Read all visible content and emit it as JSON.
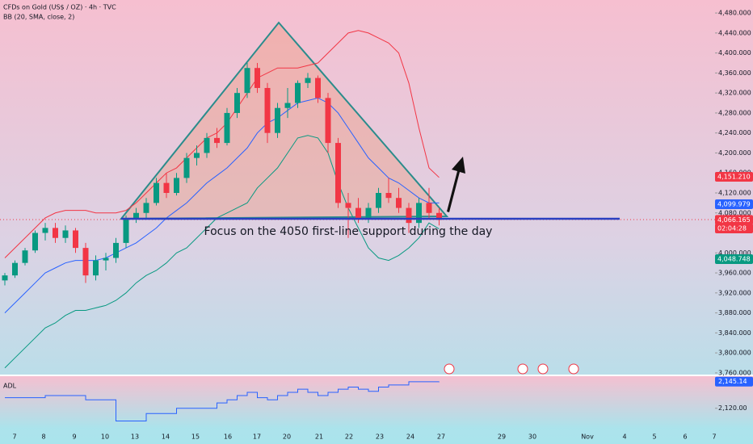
{
  "chart_data": {
    "type": "candlestick",
    "title": "CFDs on Gold (US$ / OZ) · 4h · TVC",
    "subtitle": "BB (20, SMA, close, 2)",
    "annotation": "Focus on the 4050 first-line support during the day",
    "xticks": [
      "7",
      "8",
      "9",
      "10",
      "13",
      "14",
      "15",
      "16",
      "17",
      "20",
      "21",
      "22",
      "23",
      "24",
      "27",
      "29",
      "30",
      "Nov",
      "4",
      "5",
      "6",
      "7"
    ],
    "ylim": [
      3755,
      4506
    ],
    "yticks": [
      {
        "value": 4480,
        "label": "4,480.000"
      },
      {
        "value": 4440,
        "label": "4,440.000"
      },
      {
        "value": 4400,
        "label": "4,400.000"
      },
      {
        "value": 4360,
        "label": "4,360.000"
      },
      {
        "value": 4320,
        "label": "4,320.000"
      },
      {
        "value": 4280,
        "label": "4,280.000"
      },
      {
        "value": 4240,
        "label": "4,240.000"
      },
      {
        "value": 4200,
        "label": "4,200.000"
      },
      {
        "value": 4160,
        "label": "4,160.000"
      },
      {
        "value": 4120,
        "label": "4,120.000"
      },
      {
        "value": 4080,
        "label": "4,080.000"
      },
      {
        "value": 4000,
        "label": "4,000.000"
      },
      {
        "value": 3960,
        "label": "3,960.000"
      },
      {
        "value": 3920,
        "label": "3,920.000"
      },
      {
        "value": 3880,
        "label": "3,880.000"
      },
      {
        "value": 3840,
        "label": "3,840.000"
      },
      {
        "value": 3800,
        "label": "3,800.000"
      },
      {
        "value": 3760,
        "label": "3,760.000"
      }
    ],
    "up_color": "#089981",
    "down_color": "#f23645",
    "open": [
      3945,
      3955,
      3980,
      4005,
      4040,
      4050,
      4030,
      4045,
      4010,
      3955,
      3985,
      3990,
      4020,
      4070,
      4080,
      4100,
      4140,
      4120,
      4150,
      4190,
      4200,
      4230,
      4220,
      4280,
      4320,
      4370,
      4330,
      4240,
      4290,
      4300,
      4340,
      4350,
      4310,
      4220,
      4100,
      4090,
      4070,
      4090,
      4120,
      4110,
      4090,
      4060,
      4100,
      4080
    ],
    "high": [
      3960,
      3985,
      4010,
      4045,
      4060,
      4060,
      4055,
      4050,
      4020,
      3995,
      4000,
      4030,
      4075,
      4090,
      4110,
      4150,
      4160,
      4160,
      4200,
      4215,
      4240,
      4250,
      4290,
      4330,
      4380,
      4380,
      4340,
      4300,
      4330,
      4345,
      4360,
      4355,
      4320,
      4230,
      4120,
      4110,
      4100,
      4130,
      4150,
      4130,
      4100,
      4110,
      4130,
      4090
    ],
    "low": [
      3935,
      3950,
      3975,
      4000,
      4025,
      4020,
      4020,
      4000,
      3940,
      3945,
      3965,
      3980,
      4010,
      4060,
      4070,
      4095,
      4110,
      4115,
      4140,
      4175,
      4190,
      4210,
      4215,
      4270,
      4310,
      4320,
      4220,
      4230,
      4270,
      4290,
      4330,
      4300,
      4200,
      4090,
      4030,
      4060,
      4060,
      4080,
      4100,
      4080,
      4040,
      4050,
      4070,
      4055
    ],
    "close": [
      3955,
      3980,
      4005,
      4040,
      4050,
      4030,
      4045,
      4010,
      3955,
      3985,
      3990,
      4020,
      4070,
      4080,
      4100,
      4140,
      4120,
      4150,
      4190,
      4200,
      4230,
      4220,
      4280,
      4320,
      4370,
      4330,
      4240,
      4290,
      4300,
      4340,
      4350,
      4310,
      4220,
      4100,
      4090,
      4070,
      4090,
      4120,
      4110,
      4090,
      4060,
      4100,
      4080,
      4066
    ],
    "series": [
      {
        "name": "upper",
        "color": "#f23645",
        "values": [
          3990,
          4010,
          4030,
          4050,
          4070,
          4080,
          4085,
          4085,
          4085,
          4080,
          4080,
          4080,
          4085,
          4100,
          4120,
          4140,
          4160,
          4170,
          4190,
          4210,
          4230,
          4240,
          4260,
          4290,
          4320,
          4350,
          4360,
          4370,
          4370,
          4370,
          4375,
          4380,
          4400,
          4420,
          4440,
          4445,
          4440,
          4430,
          4420,
          4400,
          4340,
          4250,
          4170,
          4151
        ]
      },
      {
        "name": "basis",
        "color": "#2962ff",
        "values": [
          3880,
          3900,
          3920,
          3940,
          3960,
          3970,
          3980,
          3985,
          3985,
          3985,
          3990,
          4000,
          4010,
          4020,
          4035,
          4050,
          4070,
          4085,
          4100,
          4120,
          4140,
          4155,
          4170,
          4190,
          4210,
          4240,
          4260,
          4270,
          4285,
          4300,
          4305,
          4310,
          4300,
          4280,
          4250,
          4220,
          4190,
          4170,
          4150,
          4140,
          4125,
          4110,
          4100,
          4100
        ]
      },
      {
        "name": "lower",
        "color": "#089981",
        "values": [
          3770,
          3790,
          3810,
          3830,
          3850,
          3860,
          3875,
          3885,
          3885,
          3890,
          3895,
          3905,
          3920,
          3940,
          3955,
          3965,
          3980,
          4000,
          4010,
          4030,
          4050,
          4070,
          4080,
          4090,
          4100,
          4130,
          4150,
          4170,
          4200,
          4230,
          4235,
          4230,
          4200,
          4140,
          4090,
          4050,
          4010,
          3990,
          3985,
          3995,
          4010,
          4030,
          4060,
          4048
        ]
      }
    ],
    "price_tags": [
      {
        "label": "4,151.210",
        "color": "#f23645",
        "value": 4151.21
      },
      {
        "label": "4,099.979",
        "color": "#2962ff",
        "value": 4099.979
      },
      {
        "label": "4,066.165",
        "color": "#f23645",
        "value": 4066.165
      },
      {
        "label": "02:04:28",
        "color": "#f23645"
      },
      {
        "label": "4,048.748",
        "color": "#089981",
        "value": 4048.748
      }
    ],
    "adl": {
      "name": "ADL",
      "color": "#2962ff",
      "y2lim": [
        2100,
        2151
      ],
      "values": [
        2130,
        2130,
        2130,
        2130,
        2132,
        2132,
        2132,
        2132,
        2128,
        2128,
        2128,
        2108,
        2108,
        2108,
        2115,
        2115,
        2115,
        2120,
        2120,
        2120,
        2120,
        2125,
        2128,
        2132,
        2135,
        2130,
        2128,
        2132,
        2135,
        2138,
        2135,
        2132,
        2135,
        2138,
        2140,
        2138,
        2136,
        2140,
        2142,
        2142,
        2145,
        2145,
        2145,
        2145.14
      ],
      "y2ticks": [
        {
          "value": 2145.14,
          "label": "2,145.14"
        },
        {
          "value": 2120,
          "label": "2,120.00"
        }
      ]
    }
  }
}
